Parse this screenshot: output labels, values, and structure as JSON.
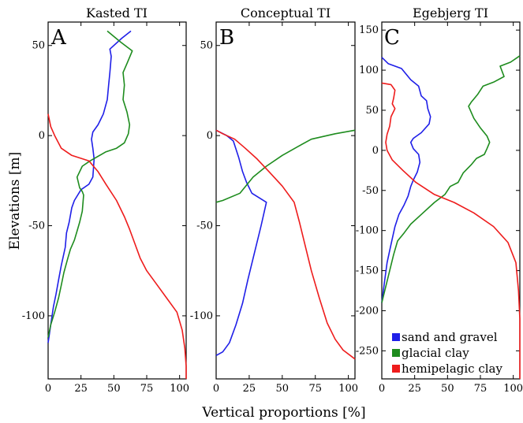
{
  "chart_data": {
    "type": "line",
    "xlabel": "Vertical proportions [%]",
    "ylabel": "Elevations [m]",
    "colors": {
      "sand": "#1f1fe8",
      "glacial": "#1e8c1e",
      "hemi": "#ee1c1c"
    },
    "legend": {
      "placement": "bottom-right of panel C",
      "entries": [
        {
          "label": "sand and gravel",
          "color": "#1f1fe8"
        },
        {
          "label": "glacial clay",
          "color": "#1e8c1e"
        },
        {
          "label": "hemipelagic clay",
          "color": "#ee1c1c"
        }
      ]
    },
    "panels": [
      {
        "letter": "A",
        "title": "Kasted TI",
        "xlim": [
          0,
          105
        ],
        "ylim": [
          -135,
          63
        ],
        "x_ticks": [
          "0",
          "25",
          "50",
          "75",
          "100"
        ],
        "x_tick_values": [
          0,
          25,
          50,
          75,
          100
        ],
        "y_ticks": [
          "50",
          "0",
          "-50",
          "-100"
        ],
        "y_tick_values": [
          50,
          0,
          -50,
          -100
        ],
        "series": [
          {
            "key": "sand",
            "points": [
              [
                63,
                58
              ],
              [
                56,
                54
              ],
              [
                47,
                48
              ],
              [
                48,
                44
              ],
              [
                47,
                35
              ],
              [
                46,
                28
              ],
              [
                45,
                20
              ],
              [
                42,
                12
              ],
              [
                38,
                6
              ],
              [
                34,
                2
              ],
              [
                33,
                -2
              ],
              [
                34,
                -7
              ],
              [
                35,
                -13
              ],
              [
                34,
                -23
              ],
              [
                31,
                -27
              ],
              [
                25,
                -30
              ],
              [
                20,
                -36
              ],
              [
                18,
                -40
              ],
              [
                16,
                -48
              ],
              [
                14,
                -54
              ],
              [
                13,
                -62
              ],
              [
                10,
                -72
              ],
              [
                8,
                -80
              ],
              [
                6,
                -88
              ],
              [
                4,
                -95
              ],
              [
                2,
                -105
              ],
              [
                0,
                -115
              ]
            ]
          },
          {
            "key": "glacial",
            "points": [
              [
                45,
                58
              ],
              [
                55,
                52
              ],
              [
                64,
                47
              ],
              [
                60,
                40
              ],
              [
                57,
                35
              ],
              [
                58,
                28
              ],
              [
                57,
                20
              ],
              [
                60,
                13
              ],
              [
                62,
                6
              ],
              [
                61,
                1
              ],
              [
                58,
                -4
              ],
              [
                52,
                -7
              ],
              [
                44,
                -9
              ],
              [
                32,
                -14
              ],
              [
                26,
                -17
              ],
              [
                22,
                -23
              ],
              [
                24,
                -29
              ],
              [
                26,
                -31
              ],
              [
                27,
                -33
              ],
              [
                26,
                -42
              ],
              [
                24,
                -48
              ],
              [
                22,
                -53
              ],
              [
                20,
                -58
              ],
              [
                17,
                -63
              ],
              [
                15,
                -68
              ],
              [
                12,
                -76
              ],
              [
                10,
                -83
              ],
              [
                8,
                -90
              ],
              [
                5,
                -98
              ],
              [
                2,
                -105
              ],
              [
                0,
                -112
              ]
            ]
          },
          {
            "key": "hemi",
            "points": [
              [
                0,
                12
              ],
              [
                2,
                5
              ],
              [
                5,
                0
              ],
              [
                10,
                -7
              ],
              [
                18,
                -11
              ],
              [
                31,
                -14
              ],
              [
                38,
                -20
              ],
              [
                44,
                -27
              ],
              [
                52,
                -36
              ],
              [
                58,
                -45
              ],
              [
                62,
                -52
              ],
              [
                66,
                -60
              ],
              [
                70,
                -68
              ],
              [
                75,
                -75
              ],
              [
                82,
                -82
              ],
              [
                90,
                -90
              ],
              [
                98,
                -98
              ],
              [
                102,
                -108
              ],
              [
                104,
                -118
              ],
              [
                105,
                -128
              ],
              [
                105,
                -135
              ]
            ]
          }
        ]
      },
      {
        "letter": "B",
        "title": "Conceptual TI",
        "xlim": [
          0,
          105
        ],
        "ylim": [
          -135,
          63
        ],
        "x_ticks": [
          "0",
          "25",
          "50",
          "75",
          "100"
        ],
        "x_tick_values": [
          0,
          25,
          50,
          75,
          100
        ],
        "y_ticks": [
          "50",
          "0",
          "-50",
          "-100"
        ],
        "y_tick_values": [
          50,
          0,
          -50,
          -100
        ],
        "series": [
          {
            "key": "sand",
            "points": [
              [
                0,
                3
              ],
              [
                8,
                0
              ],
              [
                13,
                -3
              ],
              [
                17,
                -12
              ],
              [
                20,
                -20
              ],
              [
                23,
                -26
              ],
              [
                27,
                -32
              ],
              [
                38,
                -37
              ],
              [
                34,
                -50
              ],
              [
                29,
                -65
              ],
              [
                24,
                -80
              ],
              [
                20,
                -93
              ],
              [
                15,
                -105
              ],
              [
                10,
                -115
              ],
              [
                5,
                -120
              ],
              [
                0,
                -122
              ]
            ]
          },
          {
            "key": "glacial",
            "points": [
              [
                0,
                -37
              ],
              [
                5,
                -36
              ],
              [
                18,
                -32
              ],
              [
                28,
                -23
              ],
              [
                38,
                -17
              ],
              [
                50,
                -11
              ],
              [
                62,
                -6
              ],
              [
                72,
                -2
              ],
              [
                90,
                1
              ],
              [
                105,
                3
              ]
            ]
          },
          {
            "key": "hemi",
            "points": [
              [
                0,
                3
              ],
              [
                5,
                1
              ],
              [
                14,
                -2
              ],
              [
                22,
                -7
              ],
              [
                31,
                -13
              ],
              [
                40,
                -20
              ],
              [
                50,
                -28
              ],
              [
                59,
                -37
              ],
              [
                63,
                -48
              ],
              [
                67,
                -60
              ],
              [
                72,
                -75
              ],
              [
                78,
                -90
              ],
              [
                84,
                -104
              ],
              [
                90,
                -113
              ],
              [
                96,
                -119
              ],
              [
                105,
                -124
              ]
            ]
          }
        ]
      },
      {
        "letter": "C",
        "title": "Egebjerg TI",
        "xlim": [
          0,
          105
        ],
        "ylim": [
          -285,
          160
        ],
        "x_ticks": [
          "0",
          "25",
          "50",
          "75",
          "100"
        ],
        "x_tick_values": [
          0,
          25,
          50,
          75,
          100
        ],
        "y_ticks": [
          "150",
          "100",
          "50",
          "0",
          "-50",
          "-100",
          "-150",
          "-200",
          "-250"
        ],
        "y_tick_values": [
          150,
          100,
          50,
          0,
          -50,
          -100,
          -150,
          -200,
          -250
        ],
        "series": [
          {
            "key": "sand",
            "points": [
              [
                0,
                116
              ],
              [
                5,
                108
              ],
              [
                15,
                102
              ],
              [
                22,
                88
              ],
              [
                28,
                80
              ],
              [
                30,
                68
              ],
              [
                34,
                62
              ],
              [
                35,
                52
              ],
              [
                37,
                42
              ],
              [
                36,
                33
              ],
              [
                30,
                22
              ],
              [
                24,
                15
              ],
              [
                22,
                10
              ],
              [
                24,
                2
              ],
              [
                28,
                -5
              ],
              [
                29,
                -15
              ],
              [
                27,
                -27
              ],
              [
                24,
                -37
              ],
              [
                22,
                -45
              ],
              [
                20,
                -57
              ],
              [
                17,
                -68
              ],
              [
                13,
                -80
              ],
              [
                10,
                -95
              ],
              [
                8,
                -110
              ],
              [
                6,
                -125
              ],
              [
                4,
                -140
              ],
              [
                2,
                -165
              ],
              [
                0,
                -190
              ]
            ]
          },
          {
            "key": "glacial",
            "points": [
              [
                105,
                118
              ],
              [
                98,
                110
              ],
              [
                90,
                105
              ],
              [
                93,
                92
              ],
              [
                85,
                85
              ],
              [
                77,
                80
              ],
              [
                73,
                70
              ],
              [
                68,
                60
              ],
              [
                66,
                55
              ],
              [
                70,
                40
              ],
              [
                75,
                28
              ],
              [
                80,
                18
              ],
              [
                82,
                10
              ],
              [
                80,
                2
              ],
              [
                78,
                -5
              ],
              [
                72,
                -10
              ],
              [
                68,
                -18
              ],
              [
                62,
                -28
              ],
              [
                58,
                -40
              ],
              [
                52,
                -45
              ],
              [
                48,
                -55
              ],
              [
                40,
                -65
              ],
              [
                30,
                -80
              ],
              [
                22,
                -92
              ],
              [
                17,
                -103
              ],
              [
                12,
                -113
              ],
              [
                9,
                -130
              ],
              [
                6,
                -150
              ],
              [
                3,
                -170
              ],
              [
                0,
                -190
              ]
            ]
          },
          {
            "key": "hemi",
            "points": [
              [
                0,
                84
              ],
              [
                7,
                82
              ],
              [
                10,
                75
              ],
              [
                9,
                65
              ],
              [
                8,
                58
              ],
              [
                10,
                52
              ],
              [
                7,
                42
              ],
              [
                6,
                30
              ],
              [
                4,
                20
              ],
              [
                3,
                10
              ],
              [
                4,
                0
              ],
              [
                8,
                -12
              ],
              [
                16,
                -25
              ],
              [
                26,
                -40
              ],
              [
                40,
                -55
              ],
              [
                55,
                -65
              ],
              [
                70,
                -78
              ],
              [
                85,
                -95
              ],
              [
                96,
                -115
              ],
              [
                102,
                -140
              ],
              [
                104,
                -175
              ],
              [
                105,
                -210
              ],
              [
                105,
                -285
              ]
            ]
          }
        ]
      }
    ]
  }
}
